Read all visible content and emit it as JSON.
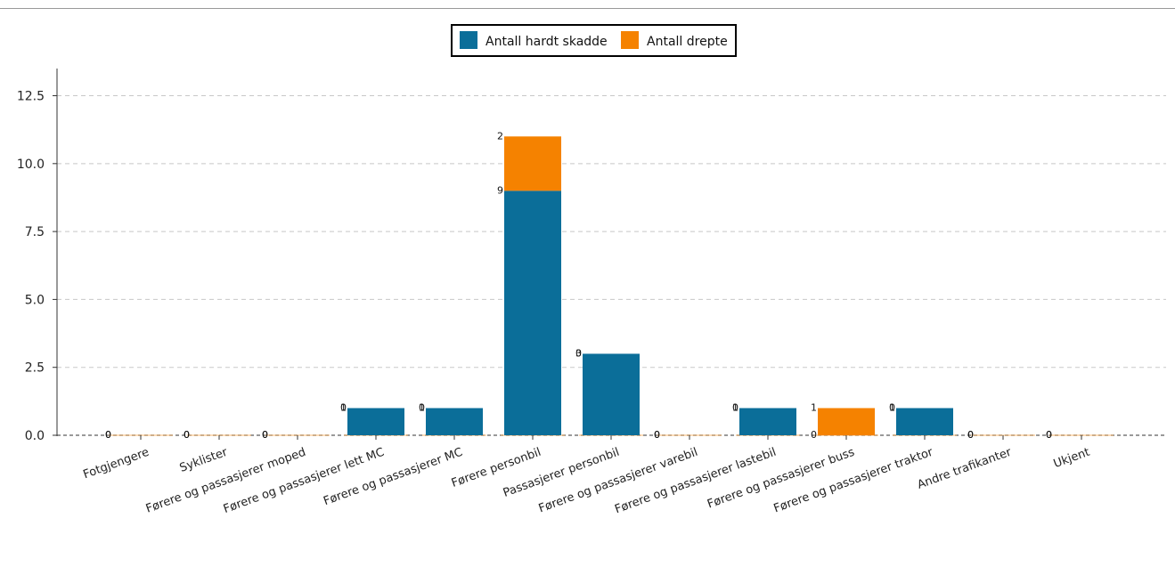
{
  "chart_data": {
    "type": "bar",
    "stacked": true,
    "categories": [
      "Fotgjengere",
      "Syklister",
      "Førere og passasjerer moped",
      "Førere og passasjerer lett MC",
      "Førere og passasjerer MC",
      "Førere personbil",
      "Passasjerer personbil",
      "Førere og passasjerer varebil",
      "Førere og passasjerer lastebil",
      "Førere og passasjerer buss",
      "Førere og passasjerer traktor",
      "Andre trafikanter",
      "Ukjent"
    ],
    "series": [
      {
        "name": "Antall hardt skadde",
        "color": "#0b6e99",
        "values": [
          0,
          0,
          0,
          1,
          1,
          9,
          3,
          0,
          1,
          0,
          1,
          0,
          0
        ]
      },
      {
        "name": "Antall drepte",
        "color": "#f58200",
        "values": [
          0,
          0,
          0,
          0,
          0,
          2,
          0,
          0,
          0,
          1,
          0,
          0,
          0
        ]
      }
    ],
    "yticks": [
      "0.0",
      "2.5",
      "5.0",
      "7.5",
      "10.0",
      "12.5"
    ],
    "ytick_values": [
      0,
      2.5,
      5,
      7.5,
      10,
      12.5
    ],
    "ylim": [
      0,
      13.5
    ],
    "grid": "horizontal-dashed",
    "legend_position": "top-center",
    "title": "",
    "xlabel": "",
    "ylabel": ""
  }
}
